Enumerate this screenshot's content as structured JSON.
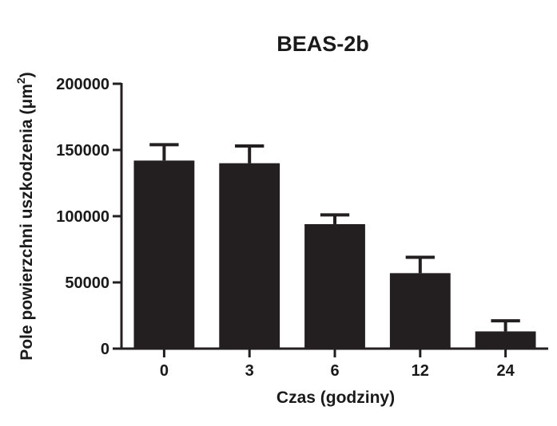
{
  "chart_data": {
    "type": "bar",
    "title": "BEAS-2b",
    "xlabel": "Czas (godziny)",
    "ylabel": "Pole powierzchni uszkodzenia (μm",
    "ylabel_superscript": "2",
    "ylabel_close": ")",
    "categories": [
      "0",
      "3",
      "6",
      "12",
      "24"
    ],
    "values": [
      142000,
      140000,
      94000,
      57000,
      13000
    ],
    "error_upper": [
      12000,
      13000,
      7000,
      12000,
      8000
    ],
    "ylim": [
      0,
      200000
    ],
    "yticks": [
      0,
      50000,
      100000,
      150000,
      200000
    ],
    "ytick_labels": [
      "0",
      "50000",
      "100000",
      "150000",
      "200000"
    ],
    "bar_color": "#231f20",
    "grid": false
  }
}
